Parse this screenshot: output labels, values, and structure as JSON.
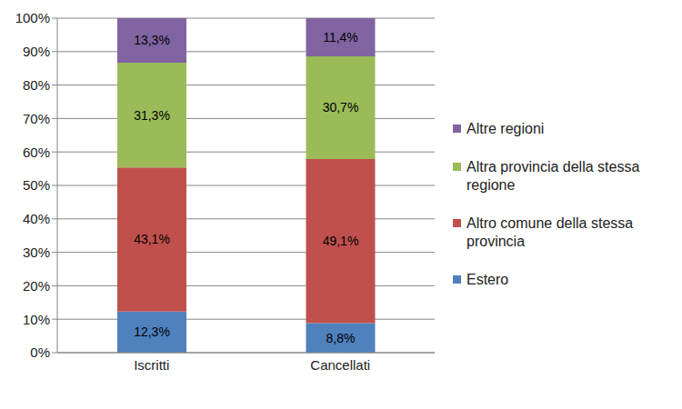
{
  "chart_data": {
    "type": "bar",
    "categories": [
      "Iscritti",
      "Cancellati"
    ],
    "stacked": true,
    "data_labels": true,
    "grid": true,
    "legend": "right",
    "ylim": [
      0,
      100
    ],
    "yticks": [
      {
        "value": 0,
        "label": "0%"
      },
      {
        "value": 10,
        "label": "10%"
      },
      {
        "value": 20,
        "label": "20%"
      },
      {
        "value": 30,
        "label": "30%"
      },
      {
        "value": 40,
        "label": "40%"
      },
      {
        "value": 50,
        "label": "50%"
      },
      {
        "value": 60,
        "label": "60%"
      },
      {
        "value": 70,
        "label": "70%"
      },
      {
        "value": 80,
        "label": "80%"
      },
      {
        "value": 90,
        "label": "90%"
      },
      {
        "value": 100,
        "label": "100%"
      }
    ],
    "series": [
      {
        "name": "Estero",
        "color": "#4f81bd",
        "values": [
          12.3,
          8.8
        ],
        "value_labels": [
          "12,3%",
          "8,8%"
        ]
      },
      {
        "name": "Altro comune della stessa provincia",
        "color": "#c0504d",
        "values": [
          43.1,
          49.1
        ],
        "value_labels": [
          "43,1%",
          "49,1%"
        ]
      },
      {
        "name": "Altra provincia della stessa regione",
        "color": "#9bbb59",
        "values": [
          31.3,
          30.7
        ],
        "value_labels": [
          "31,3%",
          "30,7%"
        ]
      },
      {
        "name": "Altre regioni",
        "color": "#8064a2",
        "values": [
          13.3,
          11.4
        ],
        "value_labels": [
          "13,3%",
          "11,4%"
        ]
      }
    ]
  }
}
